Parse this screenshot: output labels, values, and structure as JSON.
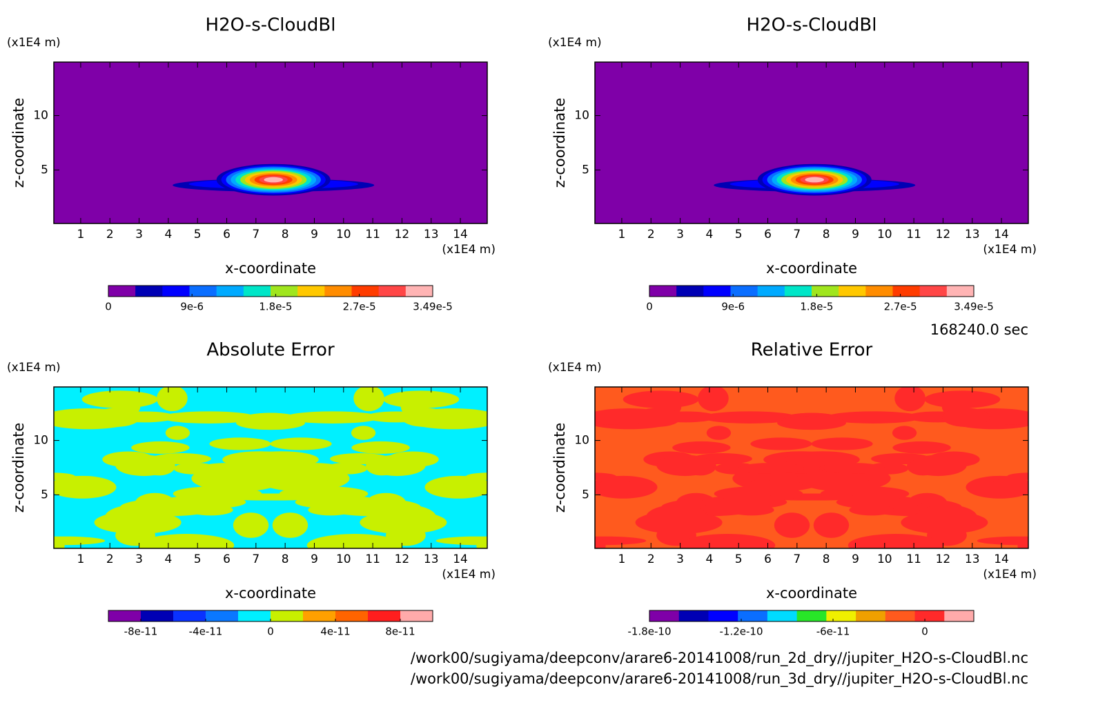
{
  "chart_data": [
    {
      "type": "contour",
      "title": "H2O-s-CloudBl",
      "xlabel": "x-coordinate",
      "ylabel": "z-coordinate",
      "xunit": "(x1E4 m)",
      "yunit": "(x1E4 m)",
      "xlim": [
        0.08,
        14.92
      ],
      "ylim": [
        0.08,
        14.92
      ],
      "xticks": [
        1,
        2,
        3,
        4,
        5,
        6,
        7,
        8,
        9,
        10,
        11,
        12,
        13,
        14
      ],
      "yticks": [
        5,
        10
      ],
      "colorbar": {
        "clim": [
          0,
          3.49e-05
        ],
        "ticks": [
          0,
          {
            "value": 9e-06,
            "label": "9e-6"
          },
          {
            "value": 1.8e-05,
            "label": "1.8e-5"
          },
          {
            "value": 2.7e-05,
            "label": "2.7e-5"
          },
          {
            "value": 3.49e-05,
            "label": "3.49e-5"
          }
        ],
        "colors": [
          "#7f00a8",
          "#0000b4",
          "#0000ff",
          "#0a6eff",
          "#00aaff",
          "#00e6c8",
          "#a0e61e",
          "#ffc800",
          "#ff8c00",
          "#ff3c00",
          "#ff4646",
          "#ffb4b4"
        ]
      }
    },
    {
      "type": "contour",
      "title": "H2O-s-CloudBl",
      "xlabel": "x-coordinate",
      "ylabel": "z-coordinate",
      "xunit": "(x1E4 m)",
      "yunit": "(x1E4 m)",
      "xlim": [
        0.08,
        14.92
      ],
      "ylim": [
        0.08,
        14.92
      ],
      "xticks": [
        1,
        2,
        3,
        4,
        5,
        6,
        7,
        8,
        9,
        10,
        11,
        12,
        13,
        14
      ],
      "yticks": [
        5,
        10
      ],
      "colorbar": {
        "clim": [
          0,
          3.49e-05
        ],
        "ticks": [
          0,
          {
            "value": 9e-06,
            "label": "9e-6"
          },
          {
            "value": 1.8e-05,
            "label": "1.8e-5"
          },
          {
            "value": 2.7e-05,
            "label": "2.7e-5"
          },
          {
            "value": 3.49e-05,
            "label": "3.49e-5"
          }
        ],
        "colors": [
          "#7f00a8",
          "#0000b4",
          "#0000ff",
          "#0a6eff",
          "#00aaff",
          "#00e6c8",
          "#a0e61e",
          "#ffc800",
          "#ff8c00",
          "#ff3c00",
          "#ff4646",
          "#ffb4b4"
        ]
      }
    },
    {
      "type": "contour",
      "title": "Absolute Error",
      "xlabel": "x-coordinate",
      "ylabel": "z-coordinate",
      "xunit": "(x1E4 m)",
      "yunit": "(x1E4 m)",
      "xlim": [
        0.08,
        14.92
      ],
      "ylim": [
        0.08,
        14.92
      ],
      "xticks": [
        1,
        2,
        3,
        4,
        5,
        6,
        7,
        8,
        9,
        10,
        11,
        12,
        13,
        14
      ],
      "yticks": [
        5,
        10
      ],
      "colorbar": {
        "clim": [
          -1e-10,
          1e-10
        ],
        "ticks": [
          -8e-11,
          -4e-11,
          0,
          4e-11,
          8e-11
        ],
        "colors": [
          "#7f00a8",
          "#0000b4",
          "#0a32ff",
          "#0a78ff",
          "#00f0ff",
          "#c8f000",
          "#ffa000",
          "#ff6400",
          "#ff1e1e",
          "#ffaaaa"
        ]
      }
    },
    {
      "type": "contour",
      "title": "Relative Error",
      "xlabel": "x-coordinate",
      "ylabel": "z-coordinate",
      "xunit": "(x1E4 m)",
      "yunit": "(x1E4 m)",
      "xlim": [
        0.08,
        14.92
      ],
      "ylim": [
        0.08,
        14.92
      ],
      "xticks": [
        1,
        2,
        3,
        4,
        5,
        6,
        7,
        8,
        9,
        10,
        11,
        12,
        13,
        14
      ],
      "yticks": [
        5,
        10
      ],
      "colorbar": {
        "clim": [
          -1.8e-10,
          3.2e-11
        ],
        "ticks": [
          -1.8e-10,
          -1.2e-10,
          -6e-11,
          0
        ],
        "colors": [
          "#7f00a8",
          "#0000b4",
          "#0000ff",
          "#0a6eff",
          "#00dcff",
          "#28e628",
          "#f0f000",
          "#f0a000",
          "#ff5a1e",
          "#ff2a2a",
          "#ffaaaa"
        ]
      }
    }
  ],
  "time": "168240.0 sec",
  "files": [
    "/work00/sugiyama/deepconv/arare6-20141008/run_2d_dry//jupiter_H2O-s-CloudBl.nc",
    "/work00/sugiyama/deepconv/arare6-20141008/run_3d_dry//jupiter_H2O-s-CloudBl.nc"
  ]
}
